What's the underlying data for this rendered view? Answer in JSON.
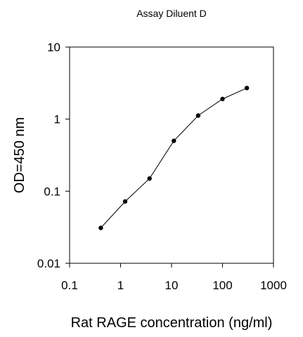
{
  "chart_data": {
    "type": "line",
    "title": "Assay Diluent D",
    "xlabel": "Rat RAGE concentration (ng/ml)",
    "ylabel": "OD=450 nm",
    "x_scale": "log",
    "y_scale": "log",
    "xlim": [
      0.1,
      1000
    ],
    "ylim": [
      0.01,
      10
    ],
    "x_ticks": [
      "0.1",
      "1",
      "10",
      "100",
      "1000"
    ],
    "y_ticks": [
      "0.01",
      "0.1",
      "1",
      "10"
    ],
    "grid": false,
    "series": [
      {
        "x": [
          0.41,
          1.23,
          3.7,
          11.1,
          33.3,
          100,
          300
        ],
        "y": [
          0.031,
          0.072,
          0.15,
          0.5,
          1.12,
          1.9,
          2.7
        ]
      }
    ],
    "colors": {
      "line": "#000000",
      "marker": "#000000"
    }
  }
}
